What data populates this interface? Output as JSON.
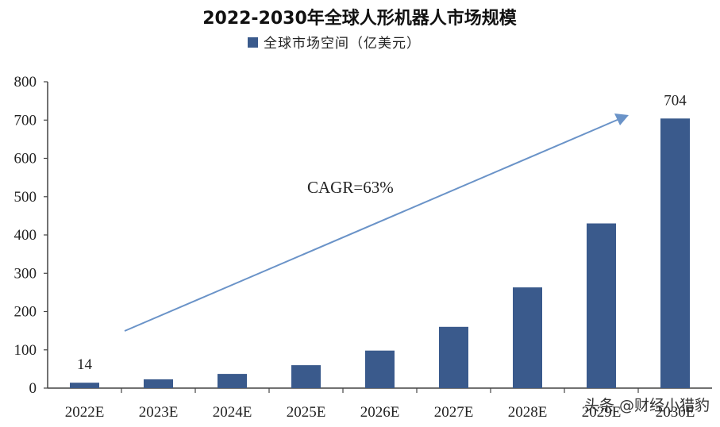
{
  "chart_data": {
    "type": "bar",
    "title": "2022-2030年全球人形机器人市场规模",
    "xlabel": "",
    "ylabel": "",
    "categories": [
      "2022E",
      "2023E",
      "2024E",
      "2025E",
      "2026E",
      "2027E",
      "2028E",
      "2029E",
      "2030E"
    ],
    "series": [
      {
        "name": "全球市场空间（亿美元）",
        "values": [
          14,
          23,
          37,
          60,
          98,
          160,
          263,
          430,
          704
        ],
        "color": "#3a5a8c"
      }
    ],
    "ylim": [
      0,
      800
    ],
    "yticks": [
      0,
      100,
      200,
      300,
      400,
      500,
      600,
      700,
      800
    ],
    "data_labels": [
      {
        "category": "2022E",
        "text": "14"
      },
      {
        "category": "2030E",
        "text": "704"
      }
    ],
    "annotations": [
      {
        "text": "CAGR=63%",
        "type": "trend-arrow",
        "color": "#6a93c8"
      }
    ],
    "legend": "top-center",
    "grid": false
  },
  "watermark": "头条 @财经小猎豹"
}
